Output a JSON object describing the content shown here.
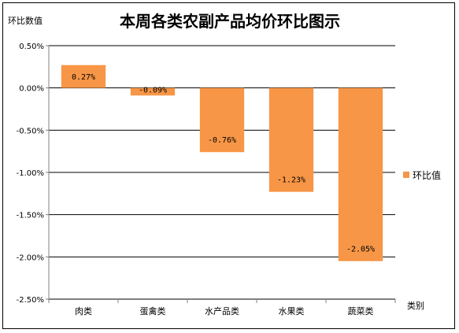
{
  "chart_data": {
    "type": "bar",
    "title": "本周各类农副产品均价环比图示",
    "ylabel": "环比数值",
    "xlabel": "类别",
    "categories": [
      "肉类",
      "蛋禽类",
      "水产品类",
      "水果类",
      "蔬菜类"
    ],
    "series": [
      {
        "name": "环比值",
        "values": [
          0.27,
          -0.09,
          -0.76,
          -1.23,
          -2.05
        ],
        "labels": [
          "0.27%",
          "-0.09%",
          "-0.76%",
          "-1.23%",
          "-2.05%"
        ]
      }
    ],
    "ylim": [
      -2.5,
      0.5
    ],
    "yticks": [
      0.5,
      0.0,
      -0.5,
      -1.0,
      -1.5,
      -2.0,
      -2.5
    ],
    "ytick_labels": [
      "0.50%",
      "0.00%",
      "-0.50%",
      "-1.00%",
      "-1.50%",
      "-2.00%",
      "-2.50%"
    ],
    "grid": true,
    "legend_position": "right",
    "colors": {
      "bar": "#F79646",
      "grid": "#000000",
      "axis": "#808080"
    }
  }
}
